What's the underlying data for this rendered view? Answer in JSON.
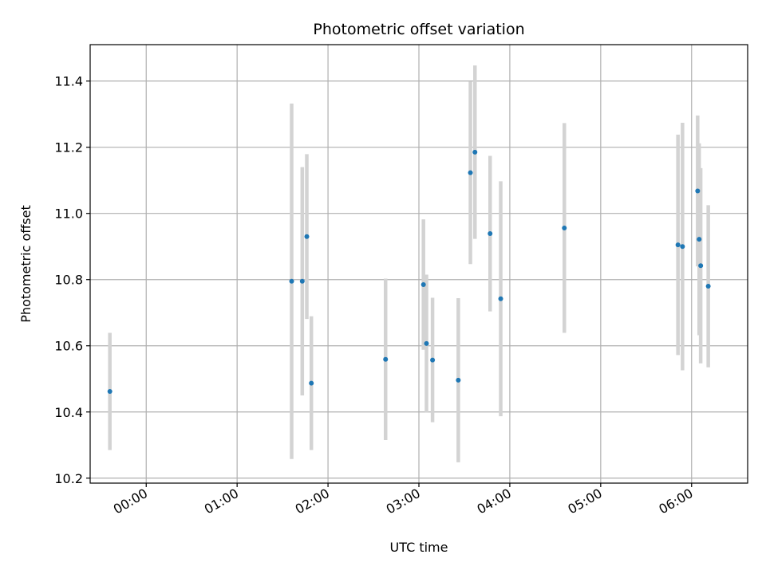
{
  "chart_data": {
    "type": "scatter",
    "title": "Photometric offset variation",
    "xlabel": "UTC time",
    "ylabel": "Photometric offset",
    "x_tick_labels": [
      "00:00",
      "01:00",
      "02:00",
      "03:00",
      "04:00",
      "05:00",
      "06:00"
    ],
    "y_tick_labels": [
      "10.2",
      "10.4",
      "10.6",
      "10.8",
      "11.0",
      "11.2",
      "11.4"
    ],
    "xlim": [
      "23:23",
      "06:37"
    ],
    "ylim": [
      10.185,
      11.51
    ],
    "grid": true,
    "marker_color": "#1f77b4",
    "errorbar_color": "#d3d3d3",
    "points": [
      {
        "x": "23:36",
        "y": 10.462,
        "err": 0.177
      },
      {
        "x": "01:36",
        "y": 10.795,
        "err": 0.537
      },
      {
        "x": "01:43",
        "y": 10.795,
        "err": 0.345
      },
      {
        "x": "01:46",
        "y": 10.93,
        "err": 0.249
      },
      {
        "x": "01:49",
        "y": 10.487,
        "err": 0.202
      },
      {
        "x": "02:38",
        "y": 10.559,
        "err": 0.244
      },
      {
        "x": "03:03",
        "y": 10.785,
        "err": 0.197
      },
      {
        "x": "03:05",
        "y": 10.607,
        "err": 0.208
      },
      {
        "x": "03:09",
        "y": 10.557,
        "err": 0.188
      },
      {
        "x": "03:26",
        "y": 10.496,
        "err": 0.248
      },
      {
        "x": "03:34",
        "y": 11.123,
        "err": 0.276
      },
      {
        "x": "03:37",
        "y": 11.185,
        "err": 0.262
      },
      {
        "x": "03:47",
        "y": 10.939,
        "err": 0.235
      },
      {
        "x": "03:54",
        "y": 10.742,
        "err": 0.355
      },
      {
        "x": "04:36",
        "y": 10.956,
        "err": 0.317
      },
      {
        "x": "05:51",
        "y": 10.905,
        "err": 0.333
      },
      {
        "x": "05:54",
        "y": 10.9,
        "err": 0.374
      },
      {
        "x": "06:04",
        "y": 11.068,
        "err": 0.228
      },
      {
        "x": "06:05",
        "y": 10.922,
        "err": 0.29
      },
      {
        "x": "06:06",
        "y": 10.842,
        "err": 0.295
      },
      {
        "x": "06:11",
        "y": 10.78,
        "err": 0.245
      }
    ]
  }
}
